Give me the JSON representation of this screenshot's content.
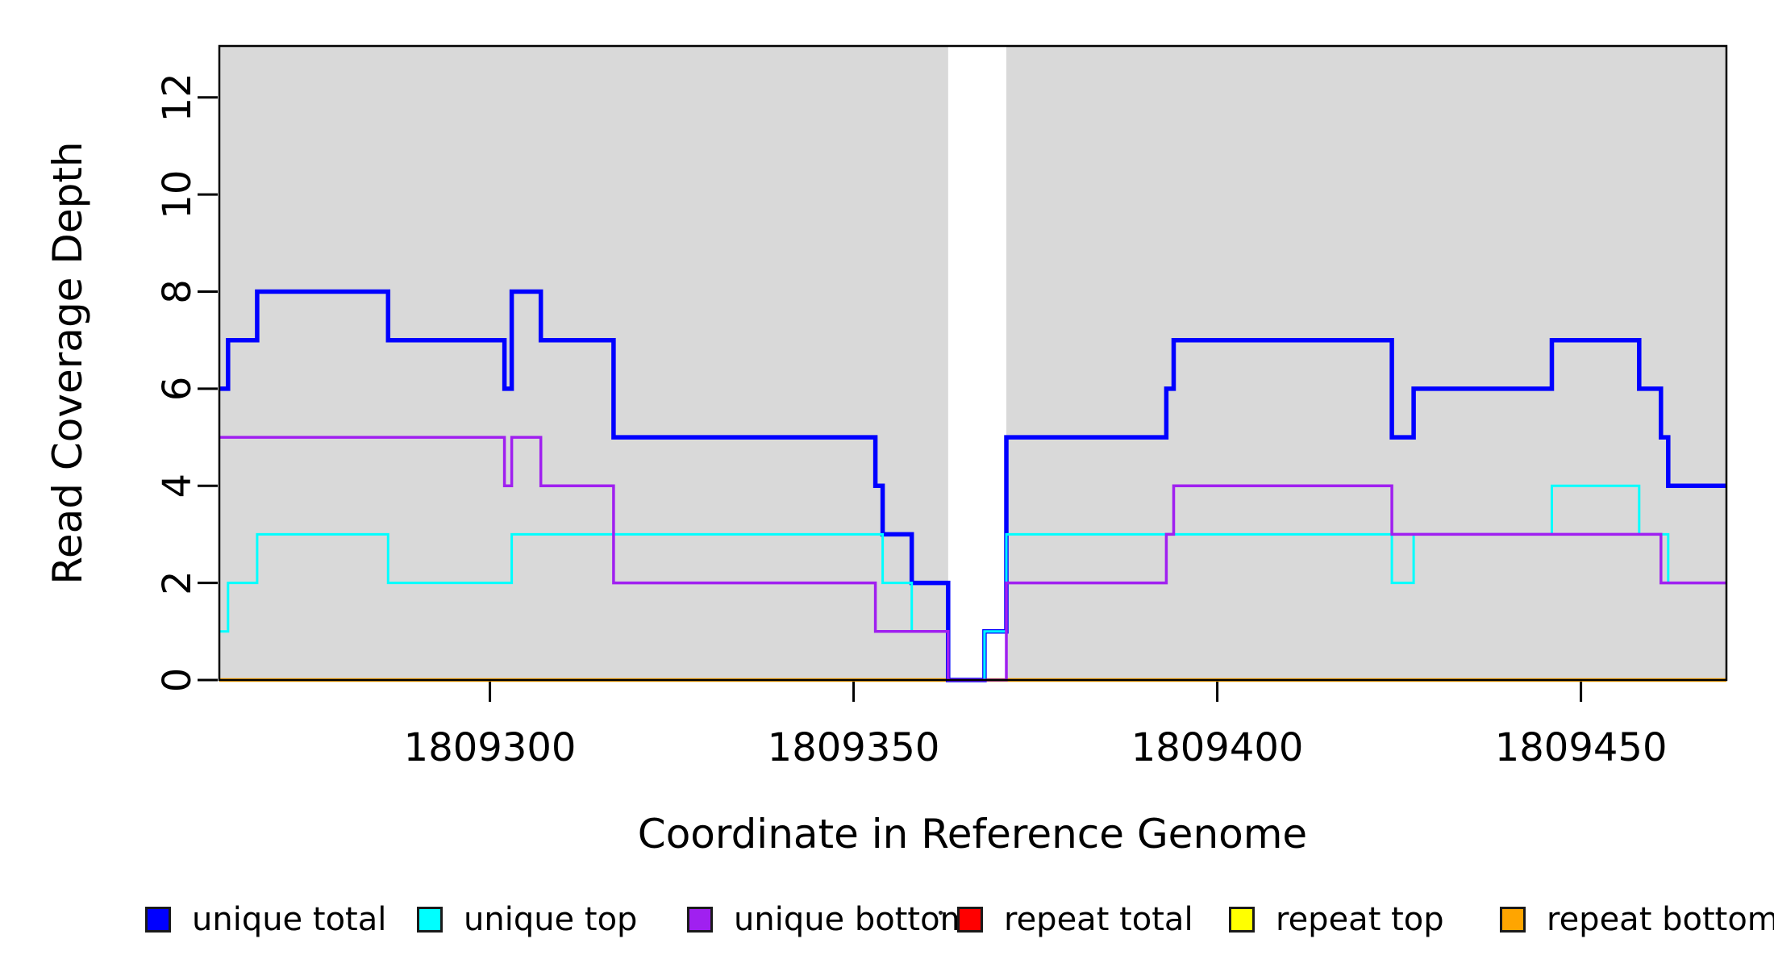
{
  "figure": {
    "background_color": "#FFFFFF",
    "frame_color": "#000000"
  },
  "chart_data": {
    "type": "line",
    "subtype": "step-after",
    "title": "",
    "xlabel": "Coordinate in Reference Genome",
    "ylabel": "Read Coverage Depth",
    "x_range": [
      1809262.8,
      1809470.0
    ],
    "y_range": [
      0,
      13.06
    ],
    "grid": "off",
    "legend_position": "bottom",
    "plot_background": "#FFFFFF",
    "shaded_band_color": "#D9D9D9",
    "shaded_bands": [
      {
        "from": 1809262.8,
        "to": 1809363,
        "color": "#D9D9D9"
      },
      {
        "from": 1809371,
        "to": 1809470.0,
        "color": "#D9D9D9"
      }
    ],
    "x_ticks": [
      {
        "value": 1809300,
        "label": "1809300"
      },
      {
        "value": 1809350,
        "label": "1809350"
      },
      {
        "value": 1809400,
        "label": "1809400"
      },
      {
        "value": 1809450,
        "label": "1809450"
      }
    ],
    "y_ticks": [
      {
        "value": 0,
        "label": "0"
      },
      {
        "value": 2,
        "label": "2"
      },
      {
        "value": 4,
        "label": "4"
      },
      {
        "value": 6,
        "label": "6"
      },
      {
        "value": 8,
        "label": "8"
      },
      {
        "value": 10,
        "label": "10"
      },
      {
        "value": 12,
        "label": "12"
      }
    ],
    "series": [
      {
        "name": "unique total",
        "color": "#0000FF",
        "width": 5.5,
        "z": 3,
        "points": [
          [
            1809262.8,
            6
          ],
          [
            1809264,
            7
          ],
          [
            1809268,
            8
          ],
          [
            1809286,
            7
          ],
          [
            1809302,
            6
          ],
          [
            1809303,
            8
          ],
          [
            1809307,
            7
          ],
          [
            1809317,
            5
          ],
          [
            1809353,
            4
          ],
          [
            1809354,
            3
          ],
          [
            1809358,
            2
          ],
          [
            1809363,
            0
          ],
          [
            1809368,
            1
          ],
          [
            1809371,
            5
          ],
          [
            1809393,
            6
          ],
          [
            1809394,
            7
          ],
          [
            1809424,
            5
          ],
          [
            1809427,
            6
          ],
          [
            1809446,
            7
          ],
          [
            1809458,
            6
          ],
          [
            1809461,
            5
          ],
          [
            1809462,
            4
          ]
        ]
      },
      {
        "name": "unique top",
        "color": "#00FFFF",
        "width": 3,
        "z": 4,
        "points": [
          [
            1809262.8,
            1
          ],
          [
            1809264,
            2
          ],
          [
            1809268,
            3
          ],
          [
            1809286,
            2
          ],
          [
            1809303,
            3
          ],
          [
            1809354,
            2
          ],
          [
            1809358,
            1
          ],
          [
            1809363,
            0
          ],
          [
            1809368,
            1
          ],
          [
            1809371,
            3
          ],
          [
            1809424,
            2
          ],
          [
            1809427,
            3
          ],
          [
            1809446,
            4
          ],
          [
            1809458,
            3
          ],
          [
            1809462,
            2
          ]
        ]
      },
      {
        "name": "unique bottom",
        "color": "#A020F0",
        "width": 3.5,
        "z": 5,
        "points": [
          [
            1809262.8,
            5
          ],
          [
            1809302,
            4
          ],
          [
            1809303,
            5
          ],
          [
            1809307,
            4
          ],
          [
            1809317,
            2
          ],
          [
            1809353,
            1
          ],
          [
            1809363,
            0
          ],
          [
            1809371,
            2
          ],
          [
            1809393,
            3
          ],
          [
            1809394,
            4
          ],
          [
            1809424,
            3
          ],
          [
            1809461,
            2
          ]
        ]
      },
      {
        "name": "repeat total",
        "color": "#FF0000",
        "width": 3,
        "z": 0,
        "points": [
          [
            1809262.8,
            0
          ]
        ]
      },
      {
        "name": "repeat top",
        "color": "#FFFF00",
        "width": 3,
        "z": 1,
        "points": [
          [
            1809262.8,
            0
          ]
        ]
      },
      {
        "name": "repeat bottom",
        "color": "#FFA500",
        "width": 4.5,
        "z": 2,
        "points": [
          [
            1809262.8,
            0
          ]
        ]
      }
    ]
  },
  "legend": {
    "items": [
      {
        "label": "unique total",
        "color": "#0000FF"
      },
      {
        "label": "unique top",
        "color": "#00FFFF"
      },
      {
        "label": "unique bottom",
        "color": "#A020F0"
      },
      {
        "label": "repeat total",
        "color": "#FF0000"
      },
      {
        "label": "repeat top",
        "color": "#FFFF00"
      },
      {
        "label": "repeat bottom",
        "color": "#FFA500"
      }
    ]
  }
}
